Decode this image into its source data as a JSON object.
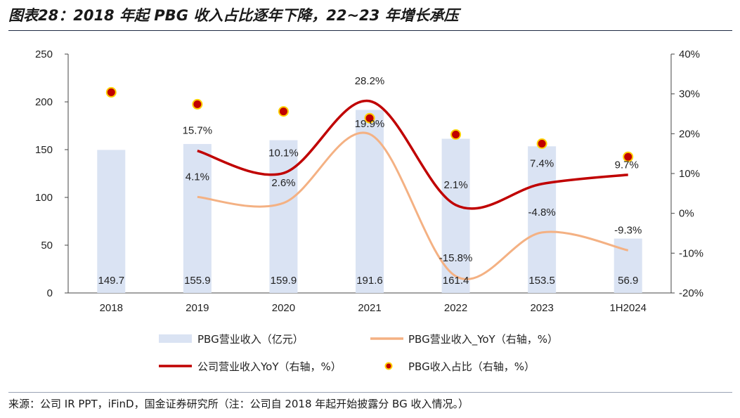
{
  "title": "图表28：2018 年起 PBG 收入占比逐年下降，22~23 年增长承压",
  "source": "来源：公司 IR PPT，iFinD，国金证券研究所（注：公司自 2018 年起开始披露分 BG 收入情况。）",
  "chart_data": {
    "type": "bar",
    "categories": [
      "2018",
      "2019",
      "2020",
      "2021",
      "2022",
      "2023",
      "1H2024"
    ],
    "y_left": {
      "ticks": [
        "0",
        "50",
        "100",
        "150",
        "200",
        "250"
      ],
      "ylim": [
        0,
        250
      ]
    },
    "y_right": {
      "ticks": [
        "-20%",
        "-10%",
        "0%",
        "10%",
        "20%",
        "30%",
        "40%"
      ],
      "ylim": [
        -20,
        40
      ]
    },
    "series": [
      {
        "name": "PBG营业收入（亿元）",
        "type": "bar",
        "axis": "left",
        "values": [
          149.7,
          155.9,
          159.9,
          191.6,
          161.4,
          153.5,
          56.9
        ],
        "labels": [
          "149.7",
          "155.9",
          "159.9",
          "191.6",
          "161.4",
          "153.5",
          "56.9"
        ],
        "color": "#dae3f3"
      },
      {
        "name": "PBG营业收入_YoY（右轴，%）",
        "type": "line",
        "axis": "right",
        "values": [
          null,
          4.1,
          2.6,
          19.9,
          -15.8,
          -4.8,
          -9.3
        ],
        "labels": [
          null,
          "4.1%",
          "2.6%",
          "19.9%",
          "-15.8%",
          "-4.8%",
          "-9.3%"
        ],
        "color": "#f4b183"
      },
      {
        "name": "公司营业收入YoY（右轴，%）",
        "type": "line",
        "axis": "right",
        "values": [
          null,
          15.7,
          10.1,
          28.2,
          2.1,
          7.4,
          9.7
        ],
        "labels": [
          null,
          "15.7%",
          "10.1%",
          "28.2%",
          "2.1%",
          "7.4%",
          "9.7%"
        ],
        "color": "#c00000"
      },
      {
        "name": "PBG收入占比（右轴，%）",
        "type": "scatter",
        "axis": "right",
        "values": [
          30.4,
          27.4,
          25.6,
          23.9,
          19.8,
          17.5,
          14.2
        ],
        "color": "#c00000",
        "edge_color": "#ffd000"
      }
    ],
    "legend_position": "bottom",
    "grid": false
  }
}
